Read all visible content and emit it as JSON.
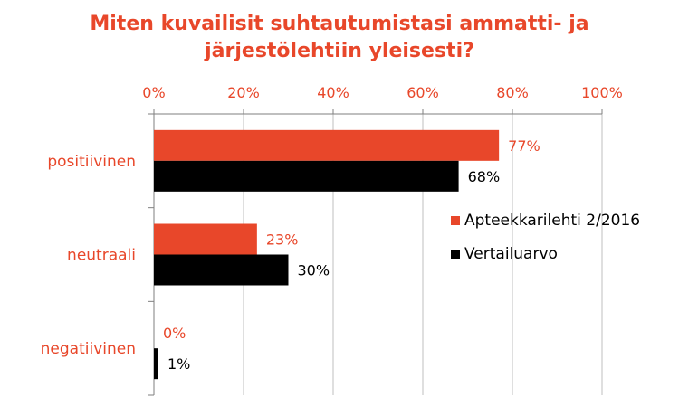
{
  "chart_data": {
    "type": "bar",
    "orientation": "horizontal",
    "title_lines": [
      "Miten kuvailisit suhtautumistasi ammatti- ja",
      "järjestölehtiin yleisesti?"
    ],
    "categories": [
      "positiivinen",
      "neutraali",
      "negatiivinen"
    ],
    "series": [
      {
        "name": "Apteekkarilehti 2/2016",
        "values": [
          77,
          23,
          0
        ],
        "labels": [
          "77%",
          "23%",
          "0%"
        ],
        "color": "#e8472a"
      },
      {
        "name": "Vertailuarvo",
        "values": [
          68,
          30,
          1
        ],
        "labels": [
          "68%",
          "30%",
          "1%"
        ],
        "color": "#000000"
      }
    ],
    "x_ticks": [
      "0%",
      "20%",
      "40%",
      "60%",
      "80%",
      "100%"
    ],
    "xlim": [
      0,
      100
    ],
    "grid": true,
    "legend_position": "right"
  }
}
